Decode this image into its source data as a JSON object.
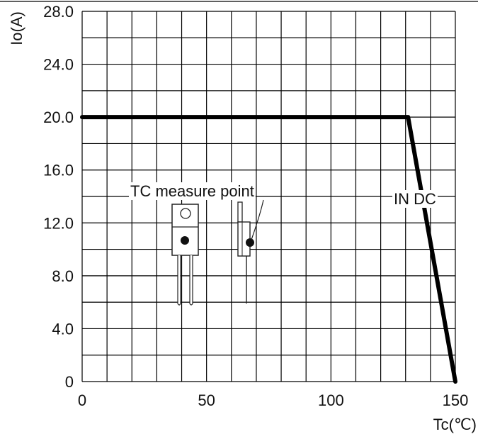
{
  "chart_data": {
    "type": "line",
    "title": "",
    "xlabel": "Tc(℃)",
    "ylabel": "Io(A)",
    "xlim": [
      0,
      150
    ],
    "ylim": [
      0,
      28
    ],
    "grid": true,
    "x_ticks": [
      {
        "value": 0,
        "label": "0"
      },
      {
        "value": 50,
        "label": "50"
      },
      {
        "value": 100,
        "label": "100"
      },
      {
        "value": 150,
        "label": "150"
      }
    ],
    "y_ticks": [
      {
        "value": 0,
        "label": "0"
      },
      {
        "value": 4,
        "label": "4.0"
      },
      {
        "value": 8,
        "label": "8.0"
      },
      {
        "value": 12,
        "label": "12.0"
      },
      {
        "value": 16,
        "label": "16.0"
      },
      {
        "value": 20,
        "label": "20.0"
      },
      {
        "value": 24,
        "label": "24.0"
      },
      {
        "value": 28,
        "label": "28.0"
      }
    ],
    "series": [
      {
        "points": [
          {
            "x": 0,
            "y": 20
          },
          {
            "x": 131,
            "y": 20
          },
          {
            "x": 150,
            "y": 0
          }
        ]
      }
    ],
    "annotations": [
      {
        "text": "TC measure point"
      },
      {
        "text": "IN DC"
      }
    ],
    "line_color": "#000000",
    "grid_color": "#000000"
  }
}
